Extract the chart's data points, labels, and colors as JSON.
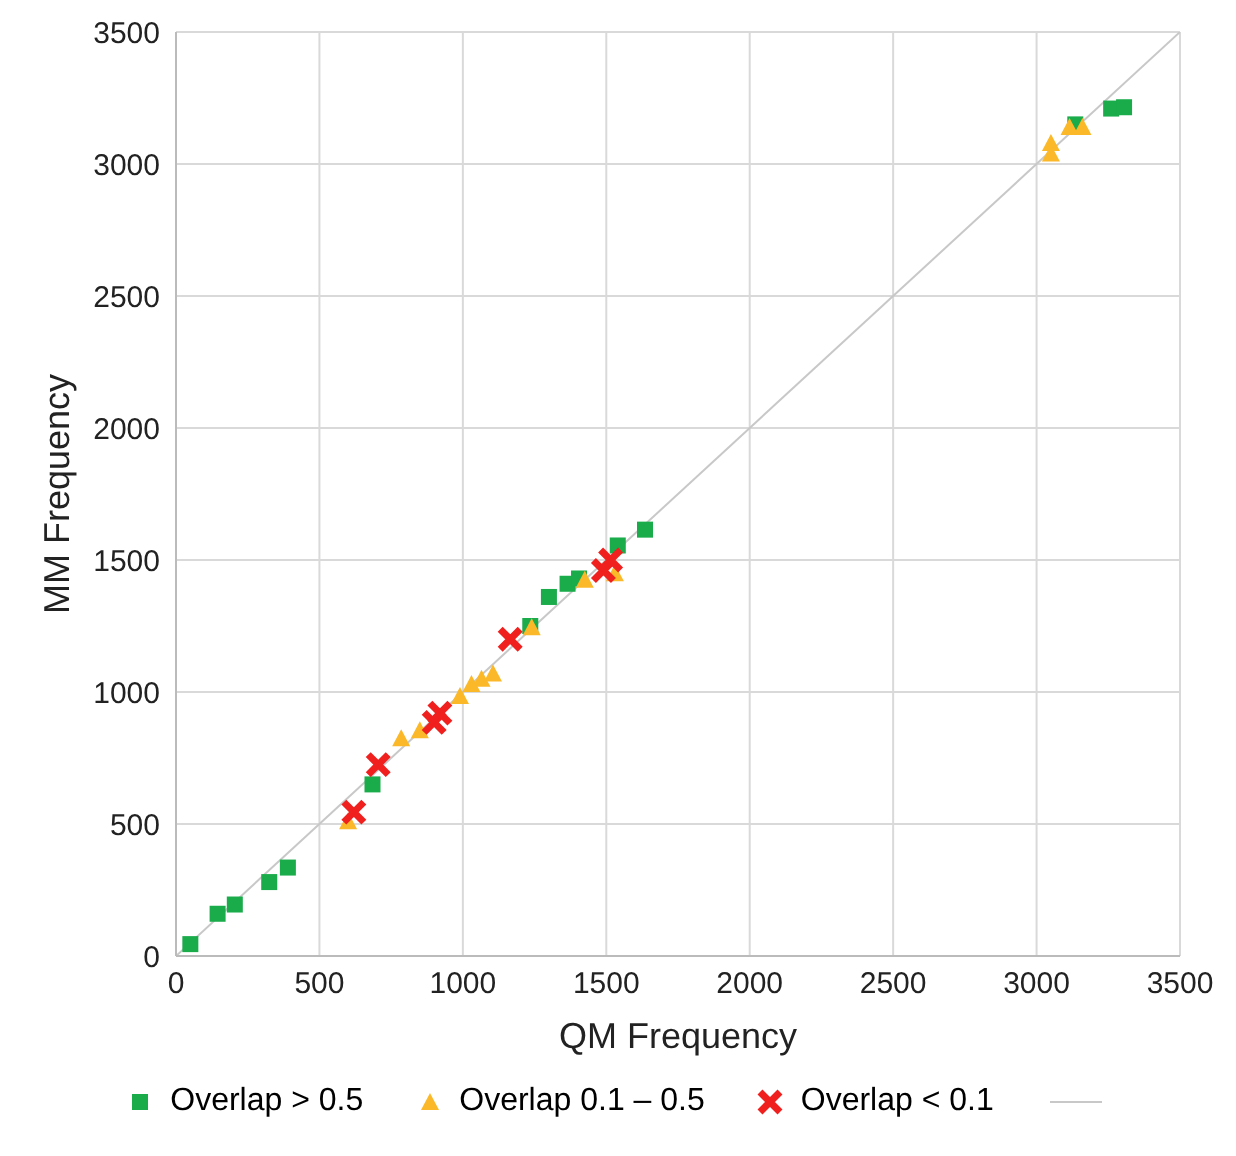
{
  "chart_data": {
    "type": "scatter",
    "xlabel": "QM Frequency",
    "ylabel": "MM Frequency",
    "xlim": [
      0,
      3500
    ],
    "ylim": [
      0,
      3500
    ],
    "xticks": [
      0,
      500,
      1000,
      1500,
      2000,
      2500,
      3000,
      3500
    ],
    "yticks": [
      0,
      500,
      1000,
      1500,
      2000,
      2500,
      3000,
      3500
    ],
    "grid": true,
    "legend": "bottom",
    "series": [
      {
        "name": "Overlap > 0.5",
        "color": "#1aab4b",
        "marker": "square",
        "x": [
          50,
          145,
          205,
          325,
          390,
          685,
          1235,
          1300,
          1365,
          1405,
          1540,
          1635,
          3135,
          3260,
          3305
        ],
        "values": [
          45,
          160,
          195,
          280,
          335,
          650,
          1250,
          1360,
          1410,
          1430,
          1555,
          1615,
          3150,
          3210,
          3215
        ]
      },
      {
        "name": "Overlap 0.1 – 0.5",
        "color": "#fbb828",
        "marker": "triangle",
        "x": [
          600,
          785,
          850,
          990,
          1030,
          1065,
          1105,
          1240,
          1425,
          1530,
          3050,
          3050,
          3115,
          3160
        ],
        "values": [
          510,
          825,
          855,
          985,
          1030,
          1050,
          1070,
          1245,
          1425,
          1450,
          3040,
          3080,
          3140,
          3140
        ]
      },
      {
        "name": "Overlap < 0.1",
        "color": "#f0201e",
        "marker": "cross",
        "x": [
          620,
          705,
          900,
          920,
          1165,
          1490,
          1515
        ],
        "values": [
          545,
          725,
          885,
          920,
          1200,
          1460,
          1500
        ]
      },
      {
        "type": "line",
        "color": "#c8c8c8",
        "marker": "none",
        "x": [
          0,
          3500
        ],
        "values": [
          0,
          3500
        ]
      }
    ]
  }
}
